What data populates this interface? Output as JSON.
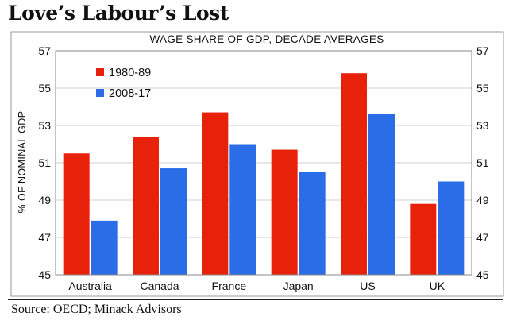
{
  "header": {
    "title": "Love’s Labour’s Lost"
  },
  "footer": {
    "source": "Source: OECD; Minack Advisors"
  },
  "colors": {
    "series1": "#e8220a",
    "series2": "#2a6de6",
    "grid": "#cfcfcf",
    "border": "#999999"
  },
  "chart_data": {
    "type": "bar",
    "title": "WAGE SHARE OF GDP, DECADE AVERAGES",
    "ylabel": "% OF NOMINAL GDP",
    "xlabel": "",
    "categories": [
      "Australia",
      "Canada",
      "France",
      "Japan",
      "US",
      "UK"
    ],
    "series": [
      {
        "name": "1980-89",
        "values": [
          51.5,
          52.4,
          53.7,
          51.7,
          55.8,
          48.8
        ]
      },
      {
        "name": "2008-17",
        "values": [
          47.9,
          50.7,
          52.0,
          50.5,
          53.6,
          50.0
        ]
      }
    ],
    "ylim": [
      45,
      57
    ],
    "yticks": [
      45,
      47,
      49,
      51,
      53,
      55,
      57
    ],
    "secondary_axis": true,
    "grid": true,
    "legend": "top-left"
  }
}
